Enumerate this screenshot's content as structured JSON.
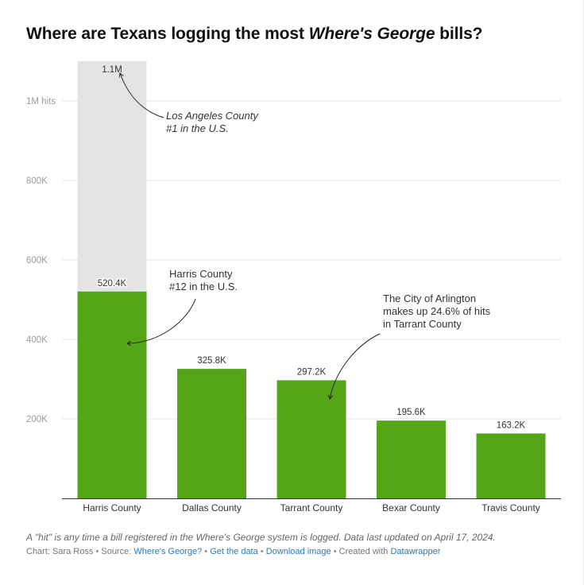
{
  "header": {
    "title_before": "Where are Texans logging the most ",
    "title_italic": "Where's George",
    "title_after": " bills?"
  },
  "chart_data": {
    "type": "bar",
    "categories": [
      "Harris County",
      "Dallas County",
      "Tarrant County",
      "Bexar County",
      "Travis County"
    ],
    "values": [
      520400,
      325800,
      297200,
      195600,
      163200
    ],
    "value_labels": [
      "520.4K",
      "325.8K",
      "297.2K",
      "195.6K",
      "163.2K"
    ],
    "reference": {
      "value": 1100000,
      "label": "1.1M",
      "category": "Harris County"
    },
    "yticks": [
      {
        "value": 200000,
        "label": "200K"
      },
      {
        "value": 400000,
        "label": "400K"
      },
      {
        "value": 600000,
        "label": "600K"
      },
      {
        "value": 800000,
        "label": "800K"
      },
      {
        "value": 1000000,
        "label": "1M hits"
      }
    ],
    "ylim": [
      0,
      1100000
    ],
    "grid": true,
    "colors": {
      "bar": "#55a519",
      "reference": "#e4e4e4",
      "grid": "#e6e6e6",
      "axis": "#333333"
    },
    "annotations": [
      {
        "lines": [
          "Los Angeles County",
          "#1 in the U.S."
        ],
        "italic": true,
        "target_category": "Harris County",
        "target_value": 1070000
      },
      {
        "lines": [
          "Harris County",
          "#12 in the U.S."
        ],
        "italic": false,
        "target_category": "Harris County",
        "target_value": 390000
      },
      {
        "lines": [
          "The City of Arlington",
          "makes up 24.6% of hits",
          "in Tarrant County"
        ],
        "italic": false,
        "target_category": "Tarrant County",
        "target_value": 250000
      }
    ]
  },
  "footer": {
    "note": "A \"hit\" is any time a bill registered in the Where's George system is logged. Data last updated on April 17, 2024.",
    "credit": "Chart: Sara Ross",
    "source_prefix": "Source: ",
    "source_link": "Where's George?",
    "get_data": "Get the data",
    "download": "Download image",
    "created_prefix": "Created with ",
    "created_link": "Datawrapper",
    "separator": "•"
  }
}
